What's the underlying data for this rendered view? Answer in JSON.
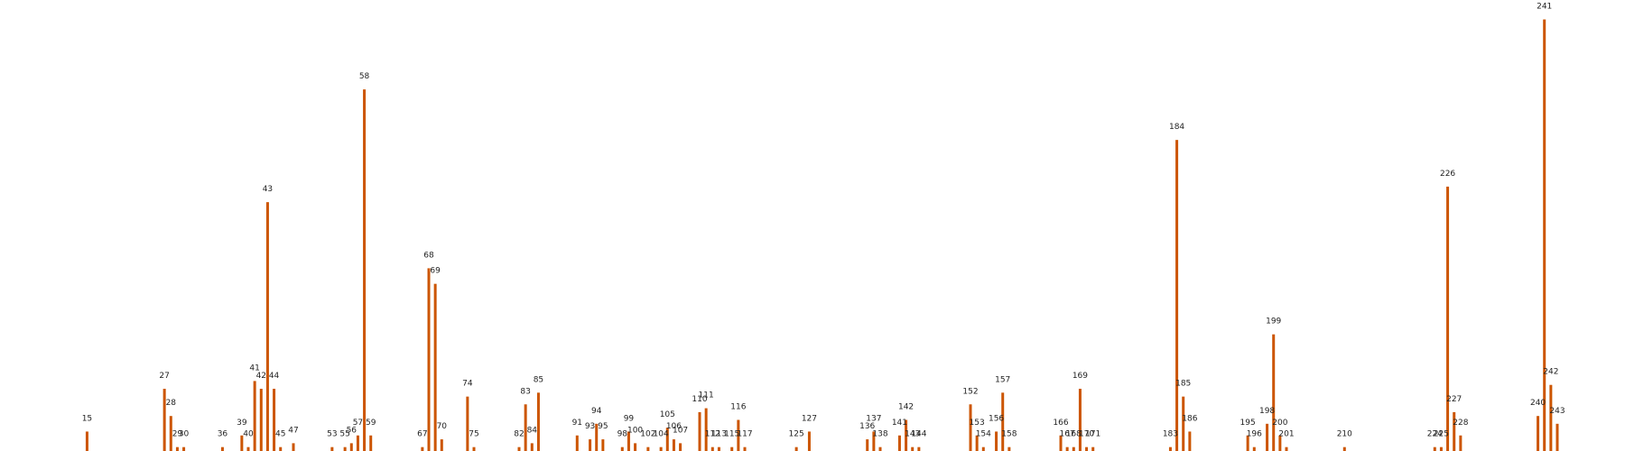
{
  "chart_data": {
    "type": "bar",
    "x": [
      15,
      27,
      28,
      29,
      30,
      36,
      39,
      40,
      41,
      42,
      43,
      44,
      45,
      47,
      53,
      55,
      56,
      57,
      58,
      59,
      67,
      68,
      69,
      70,
      74,
      75,
      82,
      83,
      84,
      85,
      91,
      93,
      94,
      95,
      98,
      99,
      100,
      102,
      104,
      105,
      106,
      107,
      110,
      111,
      112,
      113,
      115,
      116,
      117,
      125,
      127,
      136,
      137,
      138,
      141,
      142,
      143,
      144,
      152,
      153,
      154,
      156,
      157,
      158,
      166,
      167,
      168,
      169,
      170,
      171,
      183,
      184,
      185,
      186,
      195,
      196,
      198,
      199,
      200,
      201,
      210,
      224,
      225,
      226,
      227,
      228,
      240,
      241,
      242,
      243
    ],
    "values": [
      5,
      16,
      9,
      1,
      1,
      1,
      4,
      1,
      18,
      16,
      64,
      16,
      1,
      2,
      1,
      1,
      2,
      4,
      93,
      4,
      1,
      47,
      43,
      3,
      14,
      1,
      1,
      12,
      2,
      15,
      4,
      3,
      7,
      3,
      1,
      5,
      2,
      1,
      1,
      6,
      3,
      2,
      10,
      11,
      1,
      1,
      1,
      8,
      1,
      1,
      5,
      3,
      5,
      1,
      4,
      8,
      1,
      1,
      12,
      4,
      1,
      5,
      15,
      1,
      4,
      1,
      1,
      16,
      1,
      1,
      1,
      80,
      14,
      5,
      4,
      1,
      7,
      30,
      4,
      1,
      1,
      1,
      1,
      68,
      10,
      4,
      9,
      111,
      17,
      7
    ],
    "xlim": [
      5,
      250
    ],
    "ylim": [
      0,
      116
    ],
    "bar_color": "#cc5500",
    "grid": false,
    "legend": "none"
  }
}
